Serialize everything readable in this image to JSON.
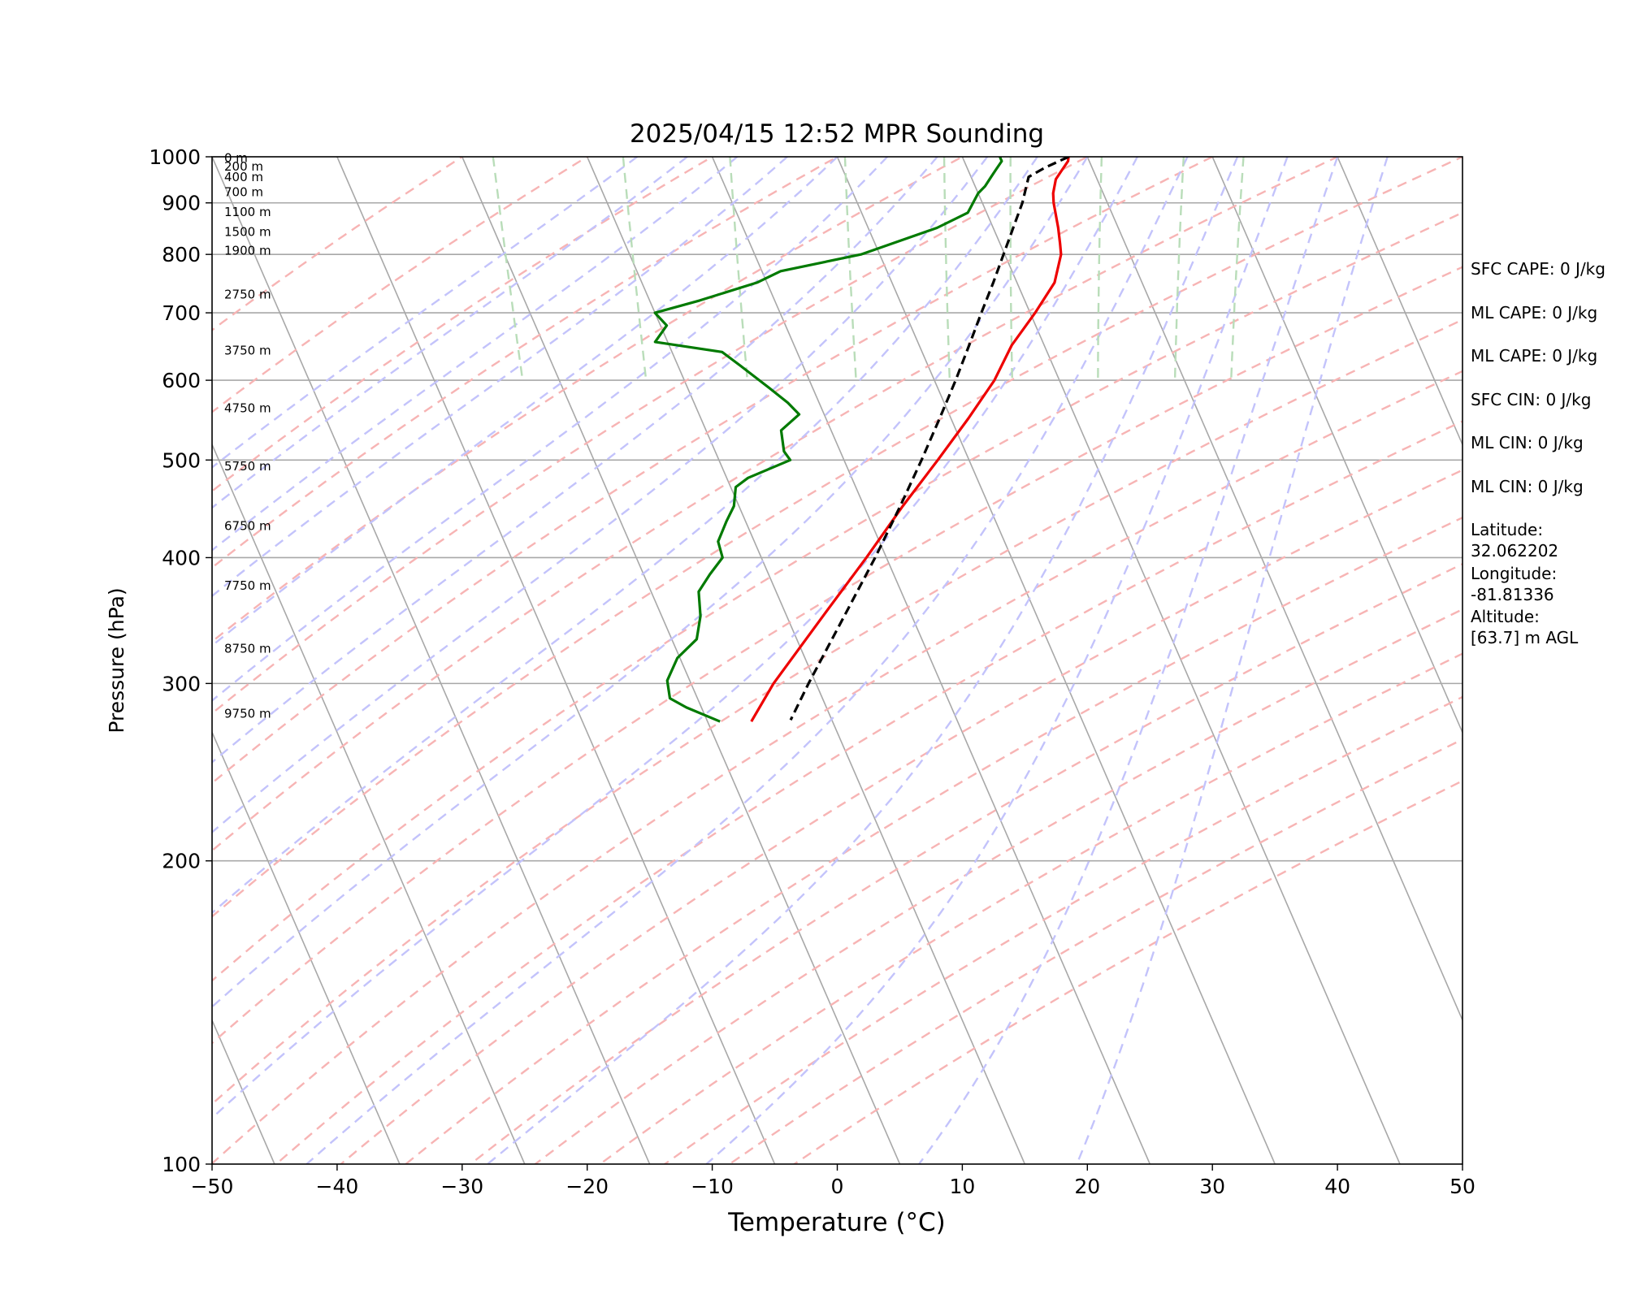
{
  "chart_data": {
    "type": "line",
    "title": "2025/04/15 12:52 MPR Sounding",
    "xlabel": "Temperature (°C)",
    "ylabel": "Pressure (hPa)",
    "xlim": [
      -50,
      50
    ],
    "ylim": [
      1000,
      100
    ],
    "y_scale": "log",
    "grid": true,
    "x_ticks": [
      -50,
      -40,
      -30,
      -20,
      -10,
      0,
      10,
      20,
      30,
      40,
      50
    ],
    "x_tick_labels": [
      "−50",
      "−40",
      "−30",
      "−20",
      "−10",
      "0",
      "10",
      "20",
      "30",
      "40",
      "50"
    ],
    "y_ticks": [
      1000,
      900,
      800,
      700,
      600,
      500,
      400,
      300,
      200,
      100
    ],
    "y_tick_labels": [
      "1000",
      "900",
      "800",
      "700",
      "600",
      "500",
      "400",
      "300",
      "200",
      "100"
    ],
    "height_labels": [
      {
        "label": "0 m",
        "p": 997
      },
      {
        "label": "200 m",
        "p": 978
      },
      {
        "label": "400 m",
        "p": 955
      },
      {
        "label": "700 m",
        "p": 922
      },
      {
        "label": "1100 m",
        "p": 881
      },
      {
        "label": "1500 m",
        "p": 842
      },
      {
        "label": "1900 m",
        "p": 807
      },
      {
        "label": "2750 m",
        "p": 730
      },
      {
        "label": "3750 m",
        "p": 642
      },
      {
        "label": "4750 m",
        "p": 563
      },
      {
        "label": "5750 m",
        "p": 493
      },
      {
        "label": "6750 m",
        "p": 430
      },
      {
        "label": "7750 m",
        "p": 375
      },
      {
        "label": "8750 m",
        "p": 325
      },
      {
        "label": "9750 m",
        "p": 280
      }
    ],
    "series": [
      {
        "name": "",
        "color": "#ee0000",
        "style": "solid",
        "points": [
          [
            1000,
            18.5
          ],
          [
            990,
            18.3
          ],
          [
            970,
            17.5
          ],
          [
            950,
            16.7
          ],
          [
            920,
            16.0
          ],
          [
            900,
            15.7
          ],
          [
            850,
            15.2
          ],
          [
            820,
            14.8
          ],
          [
            800,
            14.5
          ],
          [
            750,
            13.0
          ],
          [
            700,
            10.4
          ],
          [
            650,
            7.4
          ],
          [
            600,
            4.8
          ],
          [
            550,
            1.4
          ],
          [
            500,
            -2.5
          ],
          [
            450,
            -6.9
          ],
          [
            400,
            -11.6
          ],
          [
            350,
            -17.1
          ],
          [
            300,
            -23.4
          ],
          [
            275,
            -26.5
          ]
        ]
      },
      {
        "name": "",
        "color": "#007a00",
        "style": "solid",
        "points": [
          [
            1000,
            13.0
          ],
          [
            990,
            13.0
          ],
          [
            970,
            12.2
          ],
          [
            955,
            11.6
          ],
          [
            935,
            10.8
          ],
          [
            920,
            10.0
          ],
          [
            880,
            8.5
          ],
          [
            850,
            5.5
          ],
          [
            800,
            -1.5
          ],
          [
            770,
            -8.5
          ],
          [
            750,
            -10.8
          ],
          [
            720,
            -16.0
          ],
          [
            700,
            -20.0
          ],
          [
            680,
            -19.5
          ],
          [
            655,
            -21.0
          ],
          [
            640,
            -16.0
          ],
          [
            620,
            -15.0
          ],
          [
            590,
            -13.5
          ],
          [
            570,
            -12.5
          ],
          [
            555,
            -12.0
          ],
          [
            535,
            -14.0
          ],
          [
            510,
            -14.5
          ],
          [
            500,
            -14.3
          ],
          [
            480,
            -18.3
          ],
          [
            470,
            -19.6
          ],
          [
            450,
            -20.4
          ],
          [
            435,
            -21.5
          ],
          [
            415,
            -22.9
          ],
          [
            400,
            -23.1
          ],
          [
            385,
            -24.7
          ],
          [
            370,
            -26.2
          ],
          [
            350,
            -26.9
          ],
          [
            332,
            -28.0
          ],
          [
            318,
            -30.2
          ],
          [
            302,
            -31.8
          ],
          [
            290,
            -32.2
          ],
          [
            284,
            -31.2
          ],
          [
            275,
            -29.0
          ]
        ]
      },
      {
        "name": "",
        "color": "#000000",
        "style": "dashed",
        "points": [
          [
            1000,
            18.5
          ],
          [
            975,
            16.2
          ],
          [
            955,
            14.6
          ],
          [
            900,
            13.2
          ],
          [
            850,
            11.6
          ],
          [
            800,
            9.9
          ],
          [
            750,
            8.1
          ],
          [
            700,
            6.1
          ],
          [
            650,
            4.0
          ],
          [
            600,
            1.7
          ],
          [
            550,
            -0.9
          ],
          [
            500,
            -3.8
          ],
          [
            450,
            -7.1
          ],
          [
            400,
            -10.9
          ],
          [
            350,
            -15.4
          ],
          [
            300,
            -20.6
          ],
          [
            276,
            -23.3
          ]
        ]
      }
    ],
    "annotations": [
      "SFC CAPE: 0 J/kg",
      "ML CAPE: 0 J/kg",
      "ML CAPE: 0 J/kg",
      "SFC CIN: 0 J/kg",
      "ML CIN: 0 J/kg",
      "ML CIN: 0 J/kg",
      "Latitude:\n32.062202",
      "Longitude:\n-81.81336",
      "Altitude:\n[63.7] m AGL"
    ],
    "background_colors": {
      "isotherm": "#a8a8a8",
      "isobar": "#a8a8a8",
      "dry_adiabat": "#f7b4b4",
      "moist_adiabat": "#c3c3fb",
      "mixing_ratio": "#b9ddb9"
    }
  }
}
